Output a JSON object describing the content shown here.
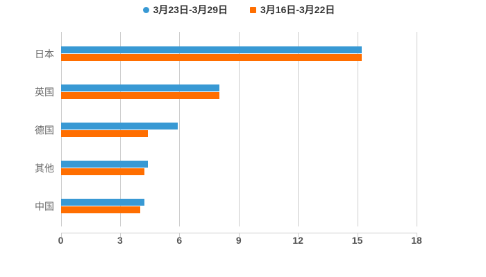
{
  "chart_data": {
    "type": "bar",
    "orientation": "horizontal",
    "title": "",
    "categories": [
      "日本",
      "英国",
      "德国",
      "其他",
      "中国"
    ],
    "series": [
      {
        "name": "3月23日-3月29日",
        "color": "#3899D4",
        "legend_marker": "circle",
        "values": [
          15.2,
          8.0,
          5.9,
          4.4,
          4.2
        ]
      },
      {
        "name": "3月16日-3月22日",
        "color": "#FF6E00",
        "legend_marker": "square",
        "values": [
          15.2,
          8.0,
          4.4,
          4.2,
          4.0
        ]
      }
    ],
    "xlim": [
      0,
      18
    ],
    "xticks": [
      "0",
      "3",
      "6",
      "9",
      "12",
      "15",
      "18"
    ],
    "grid": "vertical-lines-on",
    "legend_position": "top-center",
    "colors": {
      "background": "#ffffff",
      "gridline": "#cccccc",
      "axis_line": "#cccccc",
      "tick_label": "#555555",
      "category_label": "#666666",
      "legend_text": "#333333"
    }
  }
}
